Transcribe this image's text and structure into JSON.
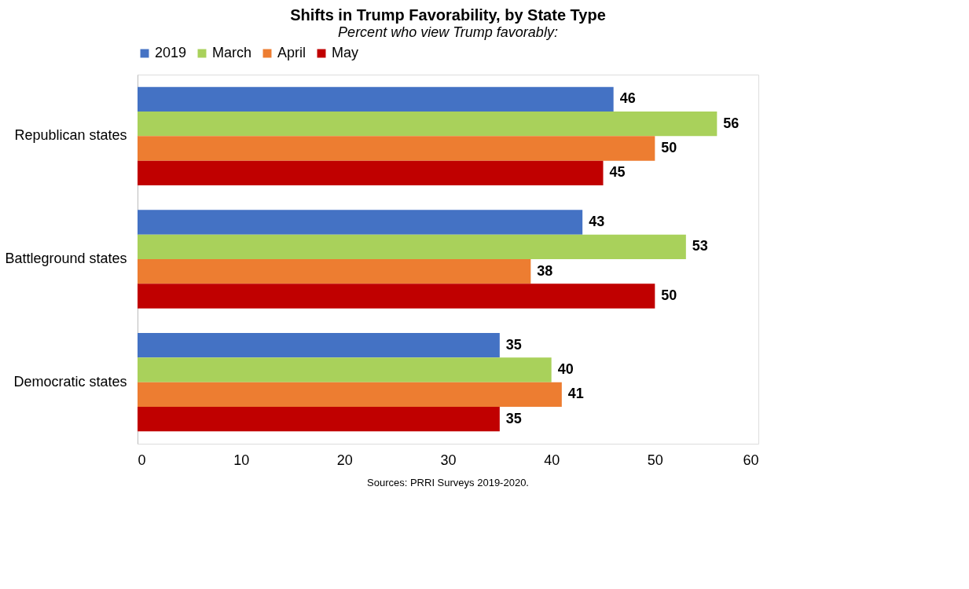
{
  "chart_data": {
    "type": "bar",
    "orientation": "horizontal",
    "title": "Shifts in Trump Favorability, by State Type",
    "subtitle": "Percent who view Trump favorably:",
    "categories": [
      "Republican states",
      "Battleground states",
      "Democratic states"
    ],
    "series": [
      {
        "name": "2019",
        "color": "#4472c4",
        "values": [
          46,
          43,
          35
        ]
      },
      {
        "name": "March",
        "color": "#a9d15b",
        "values": [
          56,
          53,
          40
        ]
      },
      {
        "name": "April",
        "color": "#ed7d31",
        "values": [
          50,
          38,
          41
        ]
      },
      {
        "name": "May",
        "color": "#c00000",
        "values": [
          45,
          50,
          35
        ]
      }
    ],
    "xlim": [
      0,
      60
    ],
    "xticks": [
      0,
      10,
      20,
      30,
      40,
      50,
      60
    ],
    "data_labels": true,
    "legend": "top",
    "grid": false,
    "annotations": [
      "Sources: PRRI Surveys 2019-2020."
    ]
  }
}
